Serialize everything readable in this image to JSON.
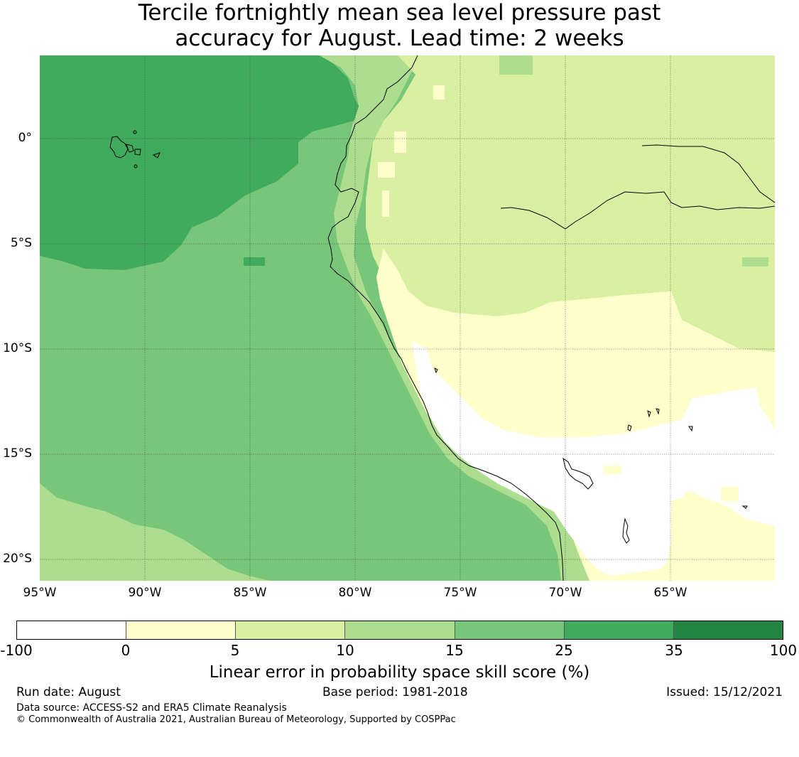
{
  "title_line1": "Tercile fortnightly mean sea level pressure past",
  "title_line2": "accuracy for August. Lead time: 2 weeks",
  "lat_labels": [
    "0°",
    "5°S",
    "10°S",
    "15°S",
    "20°S"
  ],
  "lon_labels": [
    "95°W",
    "90°W",
    "85°W",
    "80°W",
    "75°W",
    "70°W",
    "65°W"
  ],
  "map_extent": {
    "lon_min": -95,
    "lon_max": -60,
    "lat_min": -21,
    "lat_max": 4
  },
  "colorbar": {
    "ticks": [
      "-100",
      "0",
      "5",
      "10",
      "15",
      "25",
      "35",
      "100"
    ],
    "colors": [
      "#ffffff",
      "#ffffcc",
      "#d9f0a3",
      "#addd8e",
      "#78c679",
      "#41ab5d",
      "#238443"
    ],
    "label": "Linear error in probability space skill score (%)"
  },
  "footer": {
    "run_date": "Run date: August",
    "base_period": "Base period: 1981-2018",
    "issued": "Issued: 15/12/2021",
    "data_source": "Data source: ACCESS-S2 and ERA5 Climate Reanalysis",
    "copyright": "© Commonwealth of Australia 2021, Australian Bureau of Meteorology, Supported by COSPPac"
  }
}
